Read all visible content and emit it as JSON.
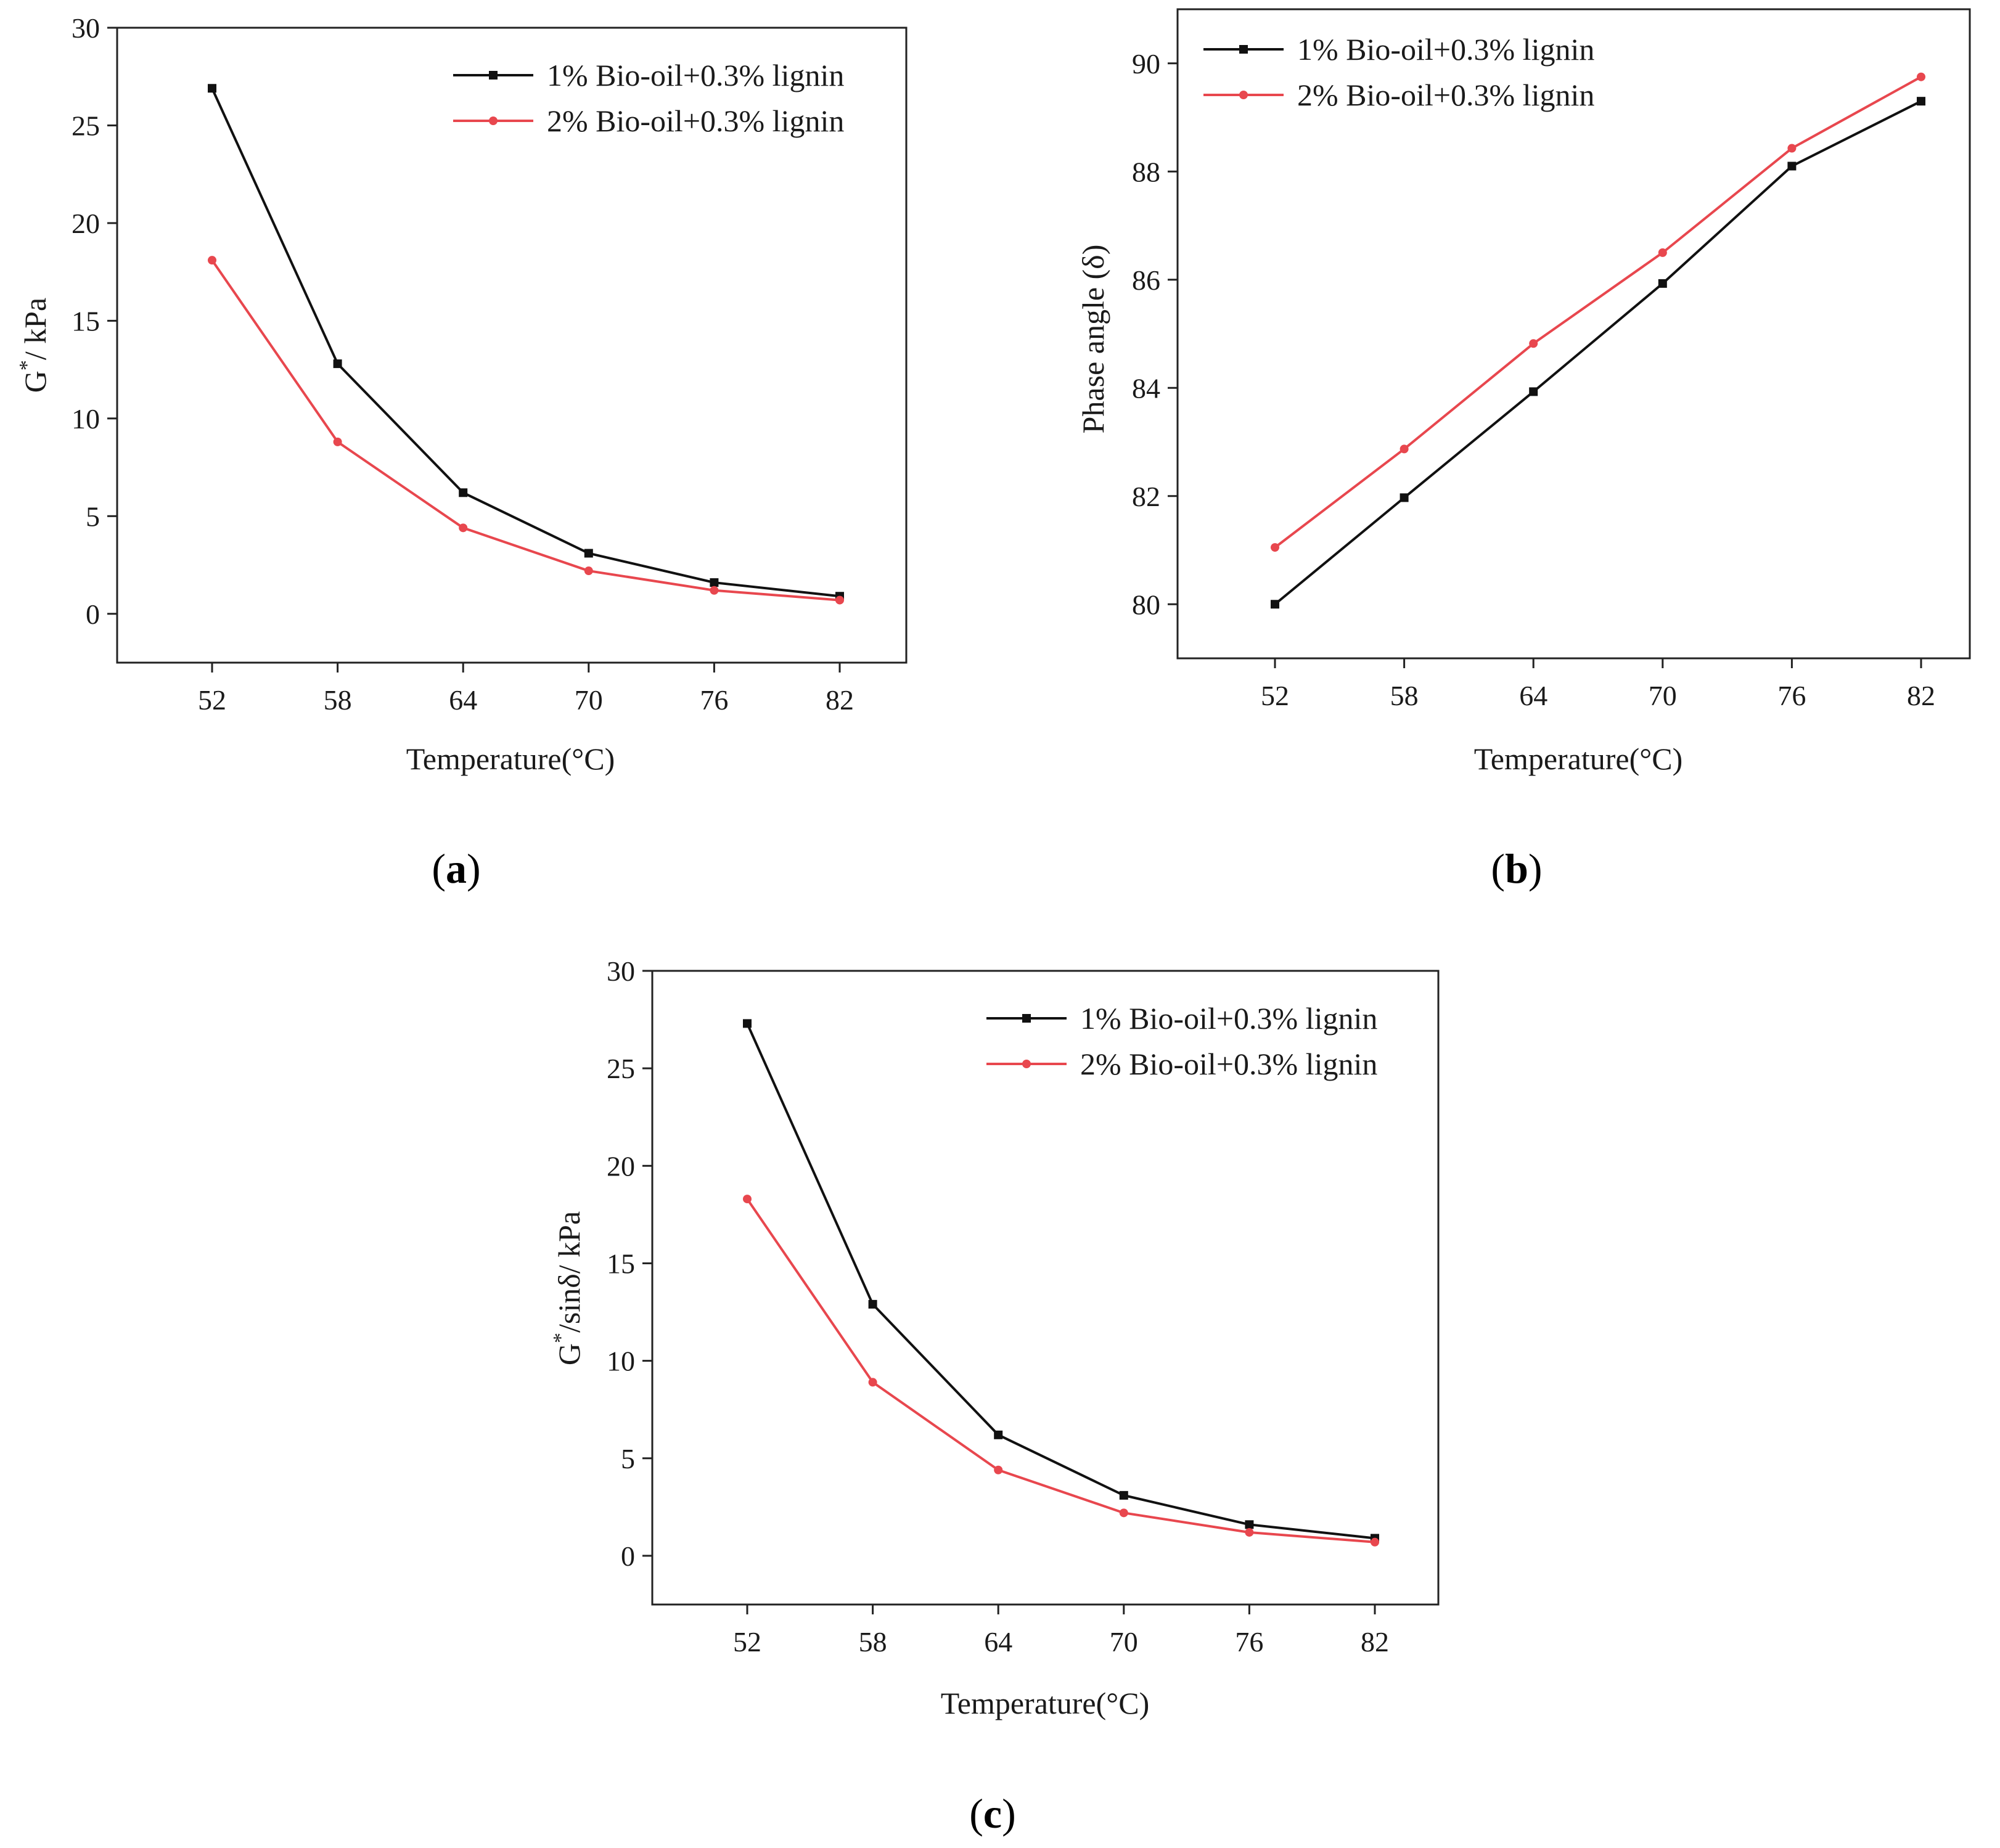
{
  "figure": {
    "panels": [
      {
        "prefix": "(",
        "letter": "a",
        "suffix": ")"
      },
      {
        "prefix": "(",
        "letter": "b",
        "suffix": ")"
      },
      {
        "prefix": "(",
        "letter": "c",
        "suffix": ")"
      }
    ]
  },
  "colors": {
    "series1": "#111111",
    "series2": "#e8474e",
    "axis": "#222222"
  },
  "chart_data": [
    {
      "type": "line",
      "panel": "a",
      "xlabel": "Temperature(°C)",
      "ylabel": "G*/ kPa",
      "ylabel_main": "G",
      "ylabel_sup": "*",
      "ylabel_rest": "/ kPa",
      "categories": [
        "52",
        "58",
        "64",
        "70",
        "76",
        "82"
      ],
      "ylim": [
        -2.5,
        30
      ],
      "yticks": [
        0,
        5,
        10,
        15,
        20,
        25,
        30
      ],
      "legend_position": "top-right",
      "series": [
        {
          "name": "1% Bio-oil+0.3% lignin",
          "marker": "square",
          "values": [
            26.9,
            12.8,
            6.2,
            3.1,
            1.6,
            0.9
          ]
        },
        {
          "name": "2% Bio-oil+0.3% lignin",
          "marker": "circle",
          "values": [
            18.1,
            8.8,
            4.4,
            2.2,
            1.2,
            0.7
          ]
        }
      ]
    },
    {
      "type": "line",
      "panel": "b",
      "xlabel": "Temperature(°C)",
      "ylabel": "Phase angle (δ)",
      "categories": [
        "52",
        "58",
        "64",
        "70",
        "76",
        "82"
      ],
      "ylim": [
        79,
        91
      ],
      "yticks": [
        80,
        82,
        84,
        86,
        88,
        90
      ],
      "legend_position": "top-left",
      "series": [
        {
          "name": "1% Bio-oil+0.3% lignin",
          "marker": "square",
          "values": [
            80.0,
            81.97,
            83.93,
            85.93,
            88.1,
            89.3
          ]
        },
        {
          "name": "2% Bio-oil+0.3% lignin",
          "marker": "circle",
          "values": [
            81.05,
            82.87,
            84.82,
            86.5,
            88.43,
            89.75
          ]
        }
      ]
    },
    {
      "type": "line",
      "panel": "c",
      "xlabel": "Temperature(°C)",
      "ylabel": "G*/sinδ/ kPa",
      "ylabel_main": "G",
      "ylabel_sup": "*",
      "ylabel_rest": "/sinδ/ kPa",
      "categories": [
        "52",
        "58",
        "64",
        "70",
        "76",
        "82"
      ],
      "ylim": [
        -2.5,
        30
      ],
      "yticks": [
        0,
        5,
        10,
        15,
        20,
        25,
        30
      ],
      "legend_position": "top-right",
      "series": [
        {
          "name": "1% Bio-oil+0.3% lignin",
          "marker": "square",
          "values": [
            27.3,
            12.9,
            6.2,
            3.1,
            1.6,
            0.9
          ]
        },
        {
          "name": "2% Bio-oil+0.3% lignin",
          "marker": "circle",
          "values": [
            18.3,
            8.9,
            4.4,
            2.2,
            1.2,
            0.7
          ]
        }
      ]
    }
  ]
}
